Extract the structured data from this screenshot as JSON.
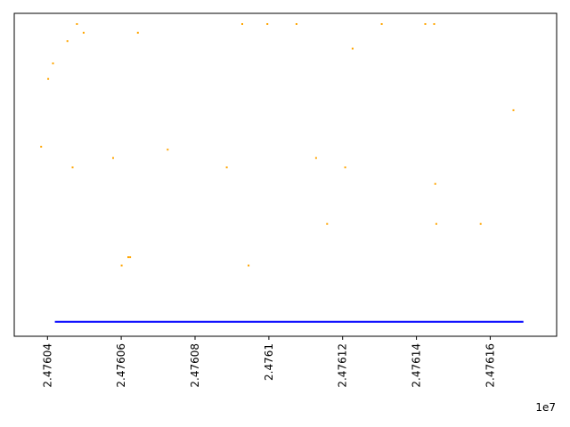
{
  "chart_data": {
    "type": "scatter",
    "title": "",
    "xlabel": "",
    "ylabel": "",
    "x_offset_label": "1e7",
    "xlim": [
      2.476031,
      2.476178
    ],
    "ylim": [
      0,
      1
    ],
    "grid": false,
    "x_ticks": [
      {
        "value": 2.47604,
        "label": "2.47604"
      },
      {
        "value": 2.47606,
        "label": "2.47606"
      },
      {
        "value": 2.47608,
        "label": "2.47608"
      },
      {
        "value": 2.4761,
        "label": "2.4761"
      },
      {
        "value": 2.47612,
        "label": "2.47612"
      },
      {
        "value": 2.47614,
        "label": "2.47614"
      },
      {
        "value": 2.47616,
        "label": "2.47616"
      }
    ],
    "series": [
      {
        "kind": "points",
        "color": "#ffa500",
        "points": [
          {
            "x": 2.4760383,
            "y": 0.587
          },
          {
            "x": 2.4760402,
            "y": 0.797
          },
          {
            "x": 2.4760415,
            "y": 0.845
          },
          {
            "x": 2.4760454,
            "y": 0.914
          },
          {
            "x": 2.4760468,
            "y": 0.523
          },
          {
            "x": 2.476048,
            "y": 0.967
          },
          {
            "x": 2.4760498,
            "y": 0.94
          },
          {
            "x": 2.4760578,
            "y": 0.552
          },
          {
            "x": 2.4760601,
            "y": 0.219
          },
          {
            "x": 2.4760619,
            "y": 0.245
          },
          {
            "x": 2.4760624,
            "y": 0.245
          },
          {
            "x": 2.4760645,
            "y": 0.94
          },
          {
            "x": 2.4760726,
            "y": 0.578
          },
          {
            "x": 2.4760886,
            "y": 0.523
          },
          {
            "x": 2.4760928,
            "y": 0.967
          },
          {
            "x": 2.4760945,
            "y": 0.219
          },
          {
            "x": 2.4760996,
            "y": 0.967
          },
          {
            "x": 2.4761075,
            "y": 0.967
          },
          {
            "x": 2.4761128,
            "y": 0.552
          },
          {
            "x": 2.4761158,
            "y": 0.348
          },
          {
            "x": 2.4761207,
            "y": 0.523
          },
          {
            "x": 2.4761227,
            "y": 0.891
          },
          {
            "x": 2.4761306,
            "y": 0.967
          },
          {
            "x": 2.4761424,
            "y": 0.967
          },
          {
            "x": 2.4761448,
            "y": 0.967
          },
          {
            "x": 2.4761451,
            "y": 0.472
          },
          {
            "x": 2.4761454,
            "y": 0.348
          },
          {
            "x": 2.4761574,
            "y": 0.348
          },
          {
            "x": 2.4761663,
            "y": 0.7
          }
        ]
      },
      {
        "kind": "line",
        "color": "#0000ff",
        "points": [
          {
            "x": 2.476042,
            "y": 0.045
          },
          {
            "x": 2.476169,
            "y": 0.045
          }
        ]
      }
    ]
  }
}
